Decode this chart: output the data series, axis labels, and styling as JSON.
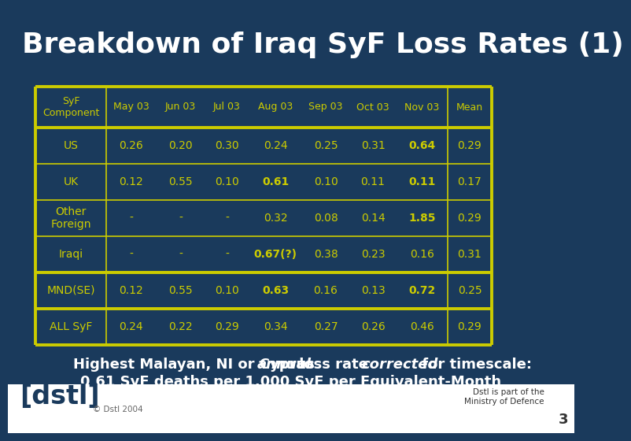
{
  "title": "Breakdown of Iraq SyF Loss Rates (1)",
  "bg_color": "#1a3a5c",
  "title_color": "#ffffff",
  "header_color": "#cccc00",
  "cell_color": "#cccc00",
  "table_bg": "#1a3a5c",
  "border_color": "#cccc00",
  "columns": [
    "SyF\nComponent",
    "May 03",
    "Jun 03",
    "Jul 03",
    "Aug 03",
    "Sep 03",
    "Oct 03",
    "Nov 03",
    "Mean"
  ],
  "rows": [
    [
      "US",
      "0.26",
      "0.20",
      "0.30",
      "0.24",
      "0.25",
      "0.31",
      "0.64",
      "0.29"
    ],
    [
      "UK",
      "0.12",
      "0.55",
      "0.10",
      "0.61",
      "0.10",
      "0.11",
      "0.11",
      "0.17"
    ],
    [
      "Other\nForeign",
      "-",
      "-",
      "-",
      "0.32",
      "0.08",
      "0.14",
      "1.85",
      "0.29"
    ],
    [
      "Iraqi",
      "-",
      "-",
      "-",
      "0.67(?)",
      "0.38",
      "0.23",
      "0.16",
      "0.31"
    ],
    [
      "MND(SE)",
      "0.12",
      "0.55",
      "0.10",
      "0.63",
      "0.16",
      "0.13",
      "0.72",
      "0.25"
    ],
    [
      "ALL SyF",
      "0.24",
      "0.22",
      "0.29",
      "0.34",
      "0.27",
      "0.26",
      "0.46",
      "0.29"
    ]
  ],
  "bold_cells": {
    "0": [
      7
    ],
    "1": [
      4,
      7
    ],
    "2": [
      7
    ],
    "3": [
      4
    ],
    "4": [
      4,
      7
    ],
    "5": []
  },
  "section_breaks_after": [
    3,
    4
  ],
  "sub1_normal1": "Highest Malayan, NI or Cyprus ",
  "sub1_italic1": "annual",
  "sub1_normal2": " loss rate ",
  "sub1_italic2": "corrected",
  "sub1_normal3": " for timescale:",
  "sub2": "0.61 SyF deaths per 1,000 SyF per Equivalent-Month",
  "footer_left": "© Dstl 2004",
  "footer_right1": "Dstl is part of the",
  "footer_right2": "Ministry of Defence",
  "page_num": "3"
}
